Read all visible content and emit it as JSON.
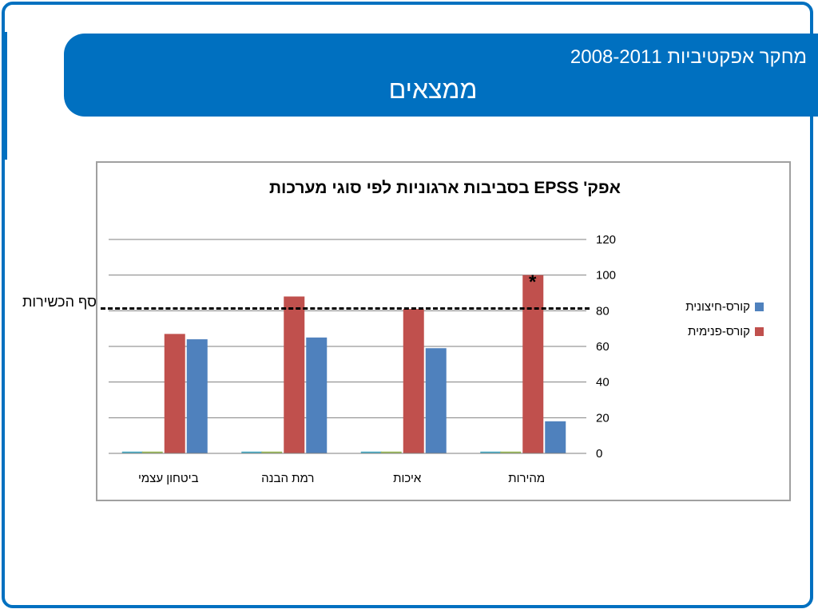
{
  "header": {
    "subtitle": "מחקר אפקטיביות 2008-2011",
    "title": "ממצאים"
  },
  "annotations": {
    "threshold_label": "סף הכשירות",
    "star": "*"
  },
  "chart_data": {
    "type": "bar",
    "title": "אפק' EPSS בסביבות ארגוניות לפי סוגי מערכות",
    "categories": [
      "ביטחון עצמי",
      "רמת הבנה",
      "איכות",
      "מהירות"
    ],
    "series": [
      {
        "name": "",
        "color": "#4bacc6",
        "values": [
          1,
          1,
          1,
          1
        ]
      },
      {
        "name": "",
        "color": "#9bbb59",
        "values": [
          1,
          1,
          1,
          1
        ]
      },
      {
        "name": "קורס-פנימית",
        "color": "#c0504d",
        "values": [
          67,
          88,
          81,
          100
        ]
      },
      {
        "name": "קורס-חיצונית",
        "color": "#4f81bd",
        "values": [
          64,
          65,
          59,
          18
        ]
      }
    ],
    "ylim": [
      0,
      120
    ],
    "yticks": [
      0,
      20,
      40,
      60,
      80,
      100,
      120
    ],
    "y_axis_side": "right",
    "threshold": 80,
    "grid": true,
    "legend_position": "right"
  }
}
